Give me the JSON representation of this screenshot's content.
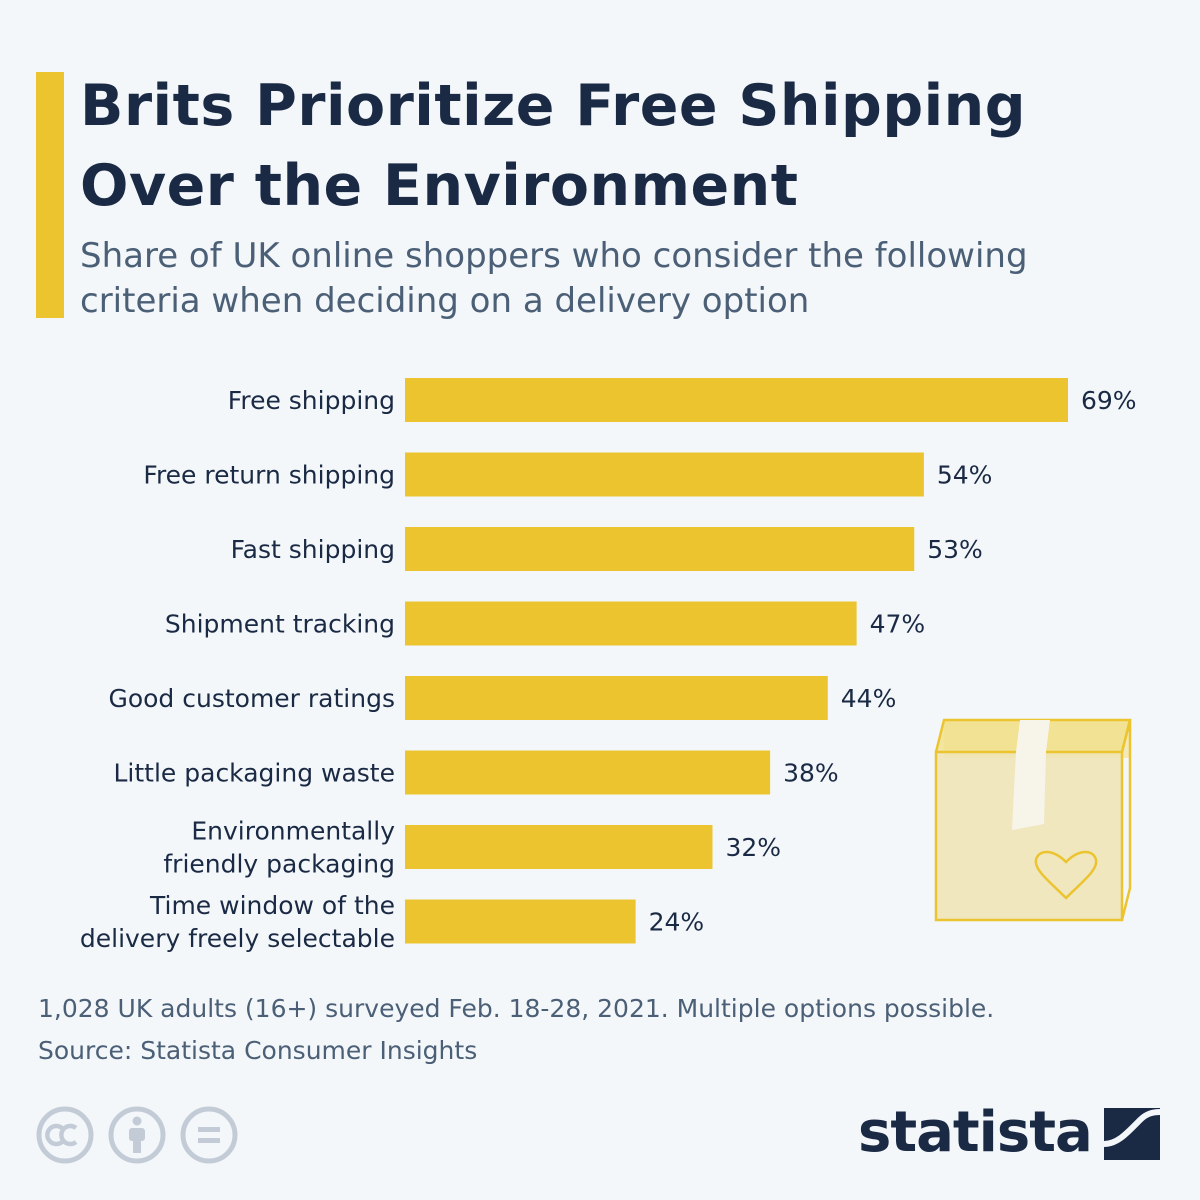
{
  "header": {
    "title_line1": "Brits Prioritize Free Shipping",
    "title_line2": "Over the Environment",
    "subtitle_line1": "Share of UK online shoppers who consider the following",
    "subtitle_line2": "criteria when deciding on a delivery option"
  },
  "chart_data": {
    "type": "bar",
    "orientation": "horizontal",
    "categories": [
      [
        "Free shipping"
      ],
      [
        "Free return shipping"
      ],
      [
        "Fast shipping"
      ],
      [
        "Shipment tracking"
      ],
      [
        "Good customer ratings"
      ],
      [
        "Little packaging waste"
      ],
      [
        "Environmentally",
        "friendly packaging"
      ],
      [
        "Time window of the",
        "delivery freely selectable"
      ]
    ],
    "values": [
      69,
      54,
      53,
      47,
      44,
      38,
      32,
      24
    ],
    "value_labels": [
      "69%",
      "54%",
      "53%",
      "47%",
      "44%",
      "38%",
      "32%",
      "24%"
    ],
    "unit": "%",
    "xlim": [
      0,
      69
    ],
    "grid": false,
    "bar_color": "#ebc430"
  },
  "footer": {
    "note": "1,028 UK adults (16+) surveyed Feb. 18-28, 2021. Multiple options possible.",
    "source": "Source: Statista Consumer Insights"
  },
  "license_icons": [
    "creative-commons-icon",
    "attribution-icon",
    "no-derivatives-icon"
  ],
  "brand": {
    "name": "statista",
    "color": "#1b2a44"
  },
  "colors": {
    "accent": "#ebc430",
    "title": "#1b2a44",
    "subtitle": "#4b5f76",
    "background": "#f3f7fa"
  }
}
